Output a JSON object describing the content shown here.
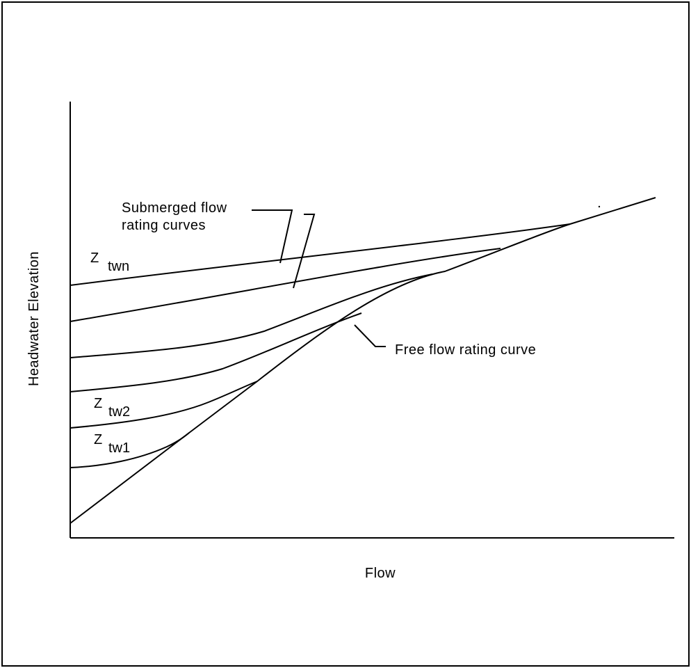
{
  "diagram": {
    "x_axis_label": "Flow",
    "y_axis_label": "Headwater Elevation",
    "callout_submerged_line1": "Submerged flow",
    "callout_submerged_line2": "rating curves",
    "callout_free": "Free flow rating curve",
    "curve_labels": [
      {
        "main": "Z",
        "sub": "twn"
      },
      {
        "main": "Z",
        "sub": "tw2"
      },
      {
        "main": "Z",
        "sub": "tw1"
      }
    ]
  }
}
